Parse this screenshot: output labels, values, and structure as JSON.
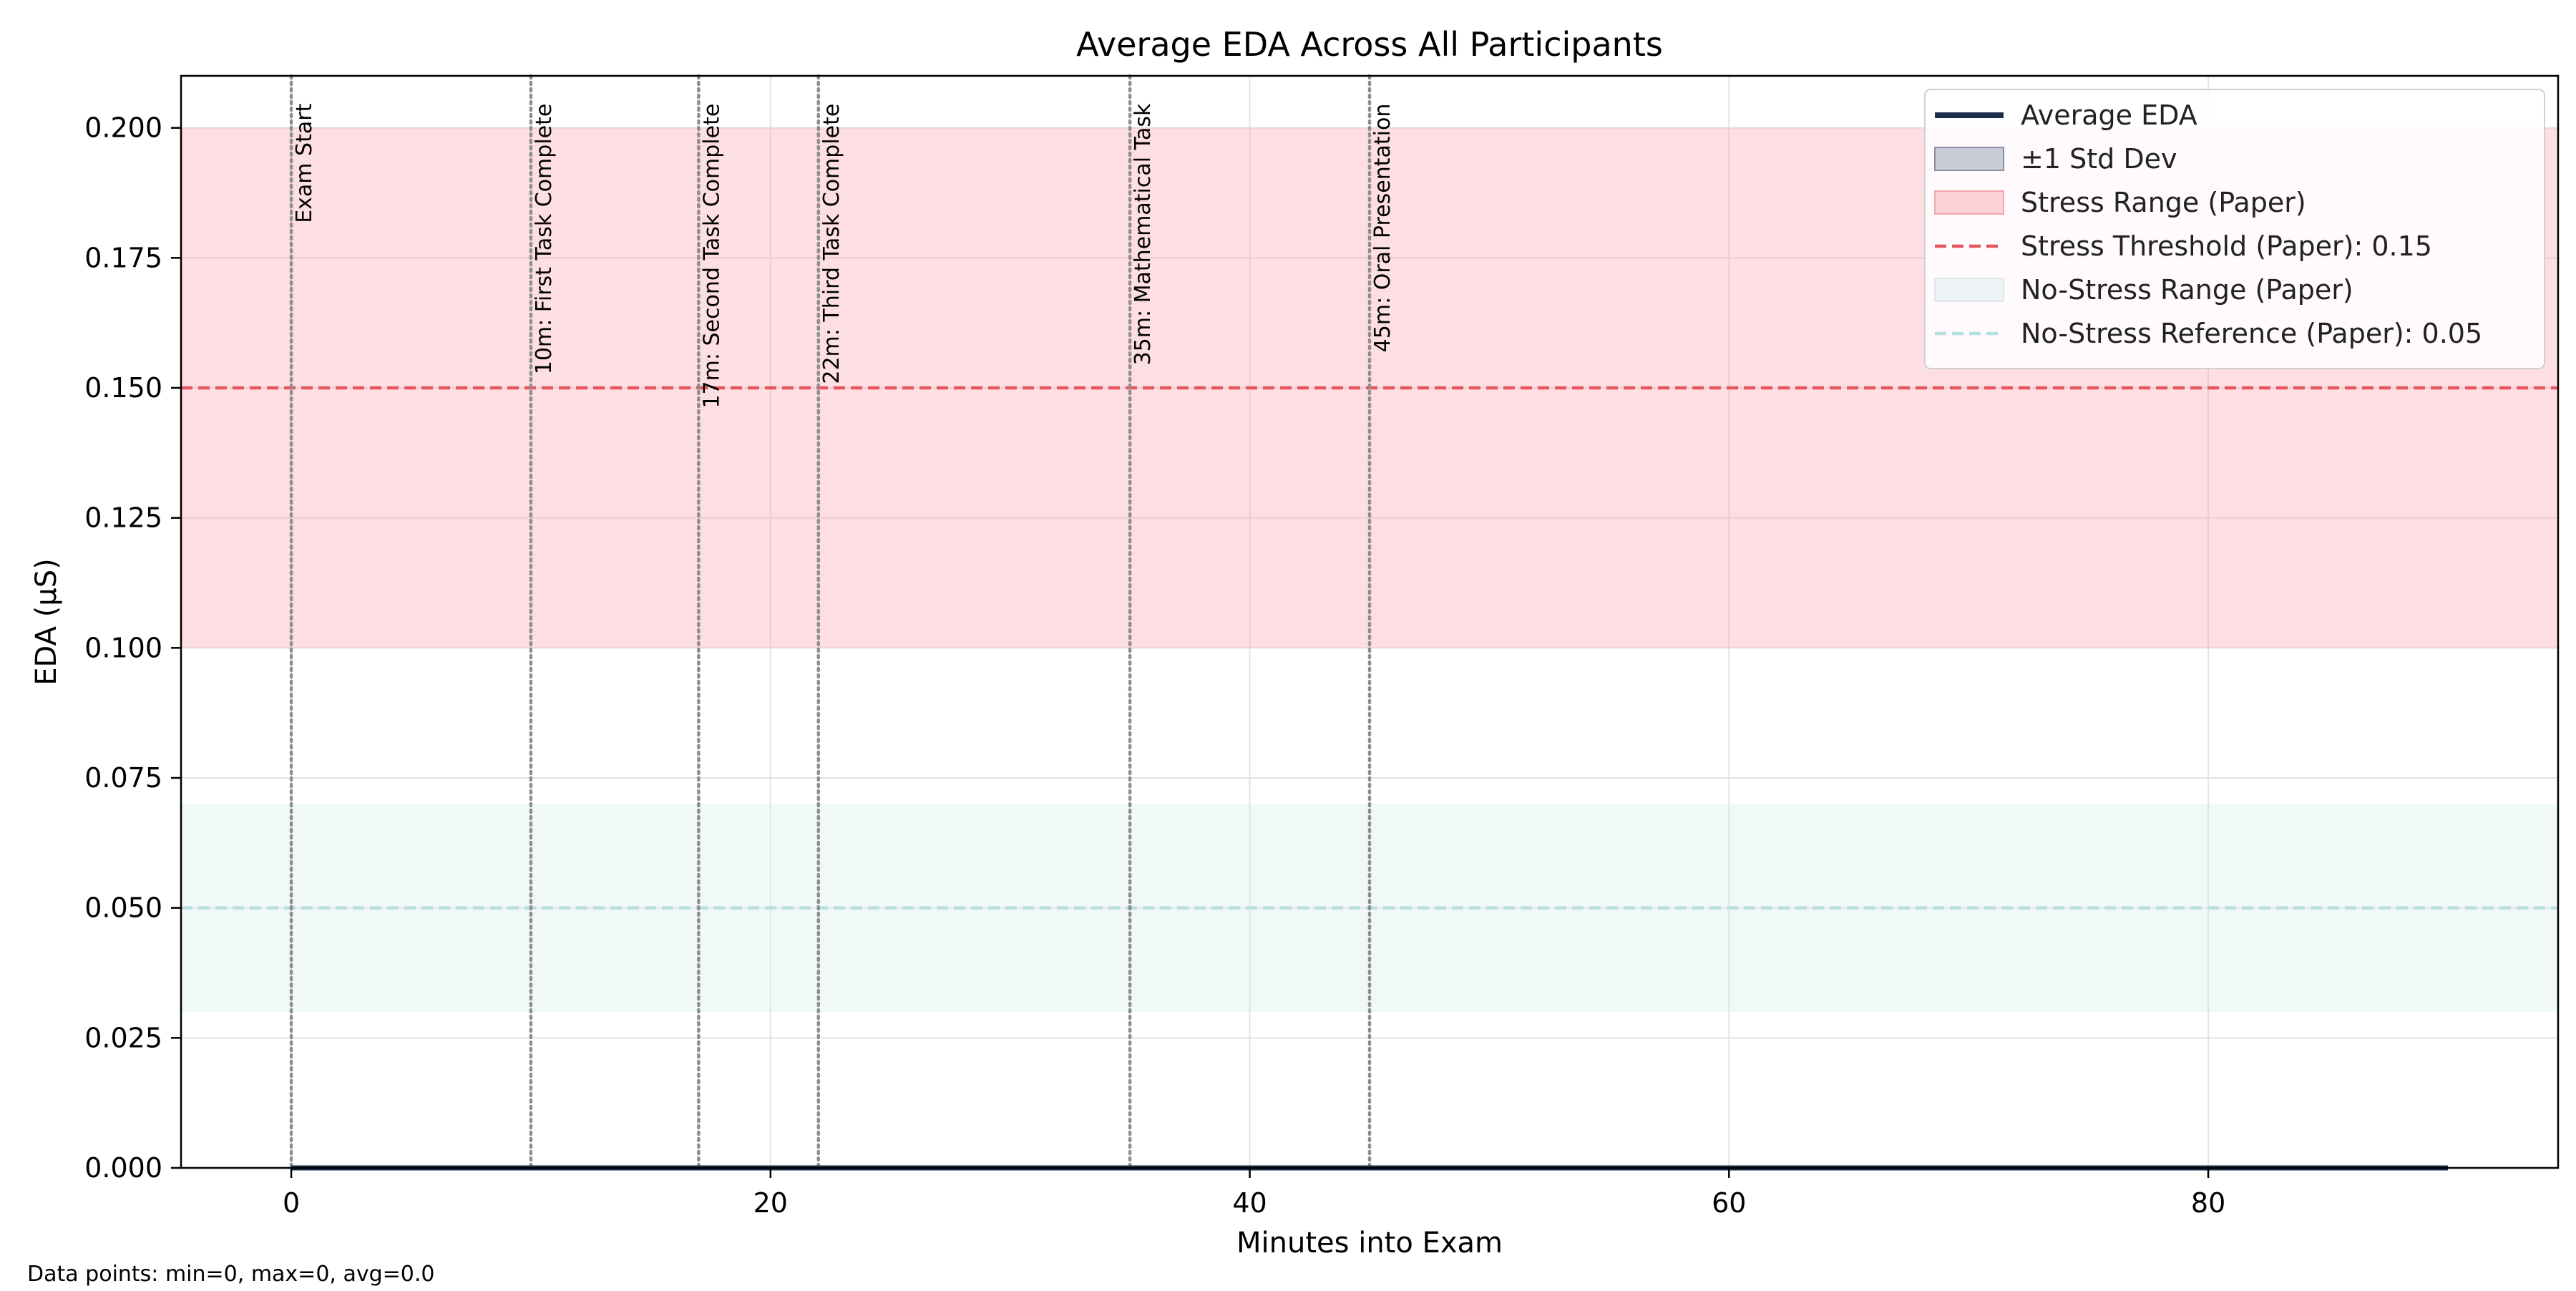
{
  "chart_data": {
    "type": "line",
    "title": "Average EDA Across All Participants",
    "xlabel": "Minutes into Exam",
    "ylabel": "EDA (µS)",
    "xlim": [
      -4.6,
      94.6
    ],
    "ylim": [
      0,
      0.21
    ],
    "x_ticks": [
      0,
      20,
      40,
      60,
      80
    ],
    "x_tick_labels": [
      "0",
      "20",
      "40",
      "60",
      "80"
    ],
    "y_ticks": [
      0,
      0.025,
      0.05,
      0.075,
      0.1,
      0.125,
      0.15,
      0.175,
      0.2
    ],
    "y_tick_labels": [
      "0.000",
      "0.025",
      "0.050",
      "0.075",
      "0.100",
      "0.125",
      "0.150",
      "0.175",
      "0.200"
    ],
    "grid": true,
    "legend_placement": "top-right",
    "series": [
      {
        "name": "Average EDA",
        "color": "#1d2b4c",
        "x": [
          0,
          90
        ],
        "y": [
          0,
          0
        ],
        "std_band_label": "±1 Std Dev",
        "std": [
          0,
          0
        ]
      }
    ],
    "reference_bands": [
      {
        "name": "Stress Range (Paper)",
        "y_range": [
          0.1,
          0.2
        ],
        "color": "#f7a8b6"
      },
      {
        "name": "No-Stress Range (Paper)",
        "y_range": [
          0.03,
          0.07
        ],
        "color": "#d5eeea"
      }
    ],
    "reference_lines": [
      {
        "name": "Stress Threshold (Paper): 0.15",
        "y": 0.15,
        "color": "#e8555f"
      },
      {
        "name": "No-Stress Reference (Paper): 0.05",
        "y": 0.05,
        "color": "#b8dfe0"
      }
    ],
    "events": [
      {
        "x": 0,
        "label": "Exam Start"
      },
      {
        "x": 10,
        "label": "10m: First Task Complete"
      },
      {
        "x": 17,
        "label": "17m: Second Task Complete"
      },
      {
        "x": 22,
        "label": "22m: Third Task Complete"
      },
      {
        "x": 35,
        "label": "35m: Mathematical Task"
      },
      {
        "x": 45,
        "label": "45m: Oral Presentation"
      }
    ],
    "legend_entries": [
      {
        "label": "Average EDA",
        "kind": "line",
        "color": "#1d2b4c"
      },
      {
        "label": "±1 Std Dev",
        "kind": "patch",
        "color": "#c9cbd6",
        "edge": "#8c90a4"
      },
      {
        "label": "Stress Range (Paper)",
        "kind": "patch",
        "color": "#fbd2d8",
        "edge": "#f3a6b1"
      },
      {
        "label": "Stress Threshold (Paper): 0.15",
        "kind": "dashed",
        "color": "#e8555f"
      },
      {
        "label": "No-Stress Range (Paper)",
        "kind": "patch",
        "color": "#eef3f5",
        "edge": "#dfe7ea"
      },
      {
        "label": "No-Stress Reference (Paper): 0.05",
        "kind": "dashed",
        "color": "#b8dfe0"
      }
    ]
  },
  "footer": {
    "stats": "Data points: min=0, max=0, avg=0.0"
  }
}
